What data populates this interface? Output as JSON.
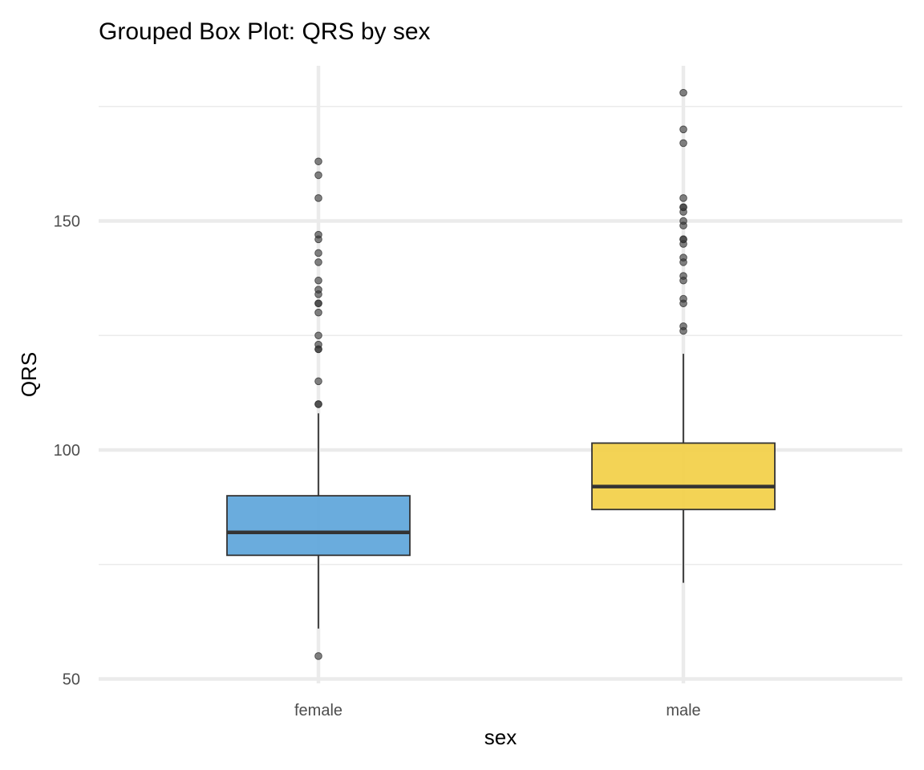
{
  "chart_data": {
    "type": "boxplot",
    "title": "Grouped Box Plot: QRS by sex",
    "xlabel": "sex",
    "ylabel": "QRS",
    "ylim": [
      48.5,
      182
    ],
    "yticks": [
      50,
      100,
      150
    ],
    "y_minor_ticks": [
      75,
      125,
      175
    ],
    "grid": true,
    "legend": "none",
    "groups": [
      {
        "name": "female",
        "color": "#5DA5DA",
        "whisker_low": 61,
        "q1": 77,
        "median": 82,
        "q3": 90,
        "whisker_high": 108,
        "outliers": [
          55,
          110,
          110,
          115,
          122,
          122,
          123,
          125,
          130,
          132,
          132,
          134,
          135,
          137,
          141,
          143,
          146,
          147,
          155,
          160,
          163
        ]
      },
      {
        "name": "male",
        "color": "#F2CF47",
        "whisker_low": 71,
        "q1": 87,
        "median": 92,
        "q3": 101.5,
        "whisker_high": 121,
        "outliers": [
          126,
          127,
          132,
          133,
          137,
          138,
          141,
          142,
          145,
          146,
          146,
          149,
          150,
          152,
          153,
          153,
          155,
          167,
          170,
          178
        ]
      }
    ]
  }
}
